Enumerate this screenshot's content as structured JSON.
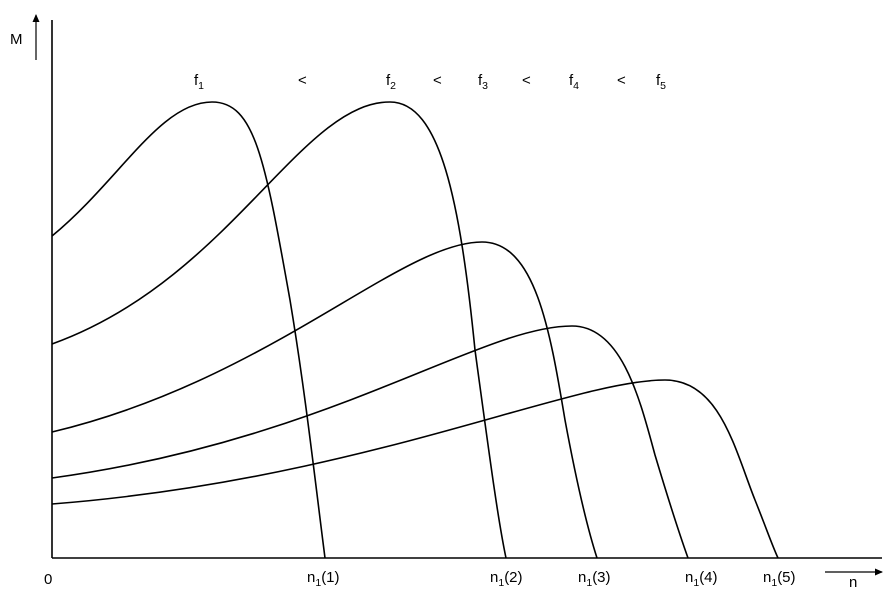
{
  "axes": {
    "y_label": "M",
    "x_label": "n",
    "origin_label": "0"
  },
  "frequency_order": {
    "labels": [
      {
        "base": "f",
        "sub": "1"
      },
      {
        "base": "f",
        "sub": "2"
      },
      {
        "base": "f",
        "sub": "3"
      },
      {
        "base": "f",
        "sub": "4"
      },
      {
        "base": "f",
        "sub": "5"
      }
    ],
    "separator": "<"
  },
  "speed_ticks": [
    {
      "base": "n",
      "sub": "1",
      "suffix": "(1)"
    },
    {
      "base": "n",
      "sub": "1",
      "suffix": "(2)"
    },
    {
      "base": "n",
      "sub": "1",
      "suffix": "(3)"
    },
    {
      "base": "n",
      "sub": "1",
      "suffix": "(4)"
    },
    {
      "base": "n",
      "sub": "1",
      "suffix": "(5)"
    }
  ]
}
